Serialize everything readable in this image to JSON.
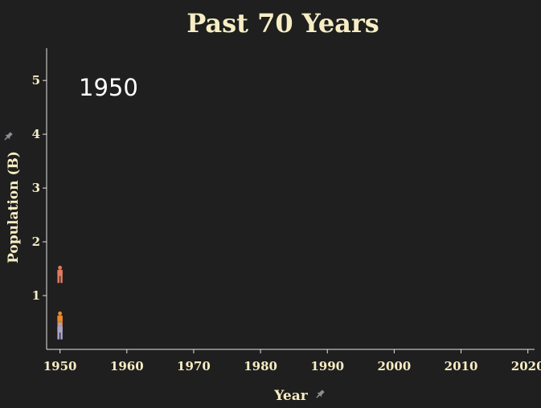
{
  "chart_data": {
    "type": "scatter",
    "title": "Past 70 Years",
    "xlabel": "Year",
    "ylabel": "Population (B)",
    "current_year_label": "1950",
    "xlim": [
      1948,
      2021
    ],
    "ylim": [
      0,
      5.6
    ],
    "x_ticks": [
      1950,
      1960,
      1970,
      1980,
      1990,
      2000,
      2010,
      2020
    ],
    "y_ticks": [
      1,
      2,
      3,
      4,
      5
    ],
    "grid": false,
    "series": [
      {
        "color": "#e07a5f",
        "points": [
          {
            "x": 1950,
            "y": 1.4
          }
        ]
      },
      {
        "color": "#e8892b",
        "points": [
          {
            "x": 1950,
            "y": 0.55
          }
        ]
      },
      {
        "color": "#a9a3c8",
        "points": [
          {
            "x": 1950,
            "y": 0.35
          }
        ]
      }
    ],
    "icons": {
      "axis_pin": "pin-icon",
      "marker": "person-icon"
    }
  }
}
